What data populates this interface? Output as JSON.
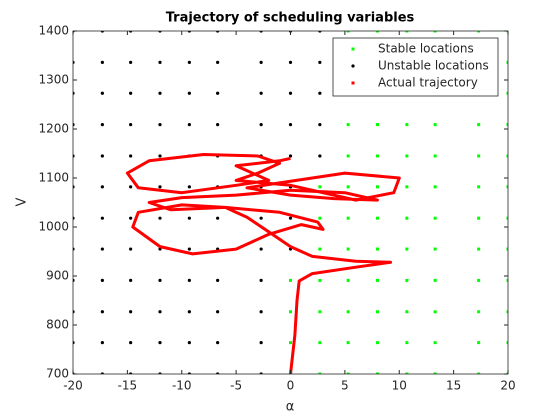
{
  "chart_data": {
    "type": "scatter",
    "title": "Trajectory of scheduling variables",
    "xlabel": "α",
    "ylabel": "V",
    "xlim": [
      -20,
      20
    ],
    "xticks": [
      -20,
      -15,
      -10,
      -5,
      0,
      5,
      10,
      15,
      20
    ],
    "ylim": [
      700,
      1400
    ],
    "yticks": [
      700,
      800,
      900,
      1000,
      1100,
      1200,
      1300,
      1400
    ],
    "grid": false,
    "legend": "northeast",
    "series": [
      {
        "name": "Stable locations",
        "color": "#00ff00",
        "marker": "square",
        "x": [
          0,
          2.7,
          5.3,
          8,
          10.7,
          13.3,
          17.3,
          20,
          0,
          2.7,
          5.3,
          8,
          10.7,
          13.3,
          17.3,
          20,
          0,
          2.7,
          5.3,
          8,
          10.7,
          13.3,
          17.3,
          20,
          0,
          2.7,
          5.3,
          8,
          10.7,
          13.3,
          17.3,
          20,
          2.7,
          5.3,
          8,
          10.7,
          13.3,
          17.3,
          20,
          2.7,
          5.3,
          8,
          10.7,
          13.3,
          17.3,
          20,
          2.7,
          5.3,
          8,
          10.7,
          13.3,
          17.3,
          20,
          5.3,
          8,
          10.7,
          13.3,
          17.3,
          20,
          5.3,
          8,
          10.7,
          13.3,
          17.3,
          20,
          5.3,
          8,
          10.7,
          13.3,
          17.3,
          20,
          5.3,
          8,
          10.7,
          13.3,
          17.3,
          20,
          5.3,
          8,
          10.7,
          13.3,
          17.3,
          20
        ],
        "y": [
          700,
          700,
          700,
          700,
          700,
          700,
          700,
          700,
          764,
          764,
          764,
          764,
          764,
          764,
          764,
          764,
          827,
          827,
          827,
          827,
          827,
          827,
          827,
          827,
          891,
          891,
          891,
          891,
          891,
          891,
          891,
          891,
          955,
          955,
          955,
          955,
          955,
          955,
          955,
          1018,
          1018,
          1018,
          1018,
          1018,
          1018,
          1018,
          1082,
          1082,
          1082,
          1082,
          1082,
          1082,
          1082,
          1145,
          1145,
          1145,
          1145,
          1145,
          1145,
          1209,
          1209,
          1209,
          1209,
          1209,
          1209,
          1273,
          1273,
          1273,
          1273,
          1273,
          1273,
          1336,
          1336,
          1336,
          1336,
          1336,
          1336,
          1400,
          1400,
          1400,
          1400,
          1400,
          1400
        ]
      },
      {
        "name": "Unstable locations",
        "color": "#000000",
        "marker": "dot",
        "x": [
          -20,
          -17.3,
          -14.7,
          -12,
          -9.3,
          -6.7,
          -2.7,
          -20,
          -17.3,
          -14.7,
          -12,
          -9.3,
          -6.7,
          -2.7,
          -20,
          -17.3,
          -14.7,
          -12,
          -9.3,
          -6.7,
          -2.7,
          -20,
          -17.3,
          -14.7,
          -12,
          -9.3,
          -6.7,
          -2.7,
          -20,
          -17.3,
          -14.7,
          -12,
          -9.3,
          -6.7,
          -2.7,
          0,
          -20,
          -17.3,
          -14.7,
          -12,
          -9.3,
          -6.7,
          -2.7,
          0,
          -20,
          -17.3,
          -14.7,
          -12,
          -9.3,
          -6.7,
          -2.7,
          0,
          -20,
          -17.3,
          -14.7,
          -12,
          -9.3,
          -6.7,
          -2.7,
          0,
          2.7,
          -20,
          -17.3,
          -14.7,
          -12,
          -9.3,
          -6.7,
          -2.7,
          0,
          2.7,
          -20,
          -17.3,
          -14.7,
          -12,
          -9.3,
          -6.7,
          -2.7,
          0,
          2.7,
          -20,
          -17.3,
          -14.7,
          -12,
          -9.3,
          -6.7,
          -2.7,
          0,
          2.7,
          -20,
          -17.3,
          -14.7,
          -12,
          -9.3,
          -6.7,
          -2.7,
          0,
          2.7
        ],
        "y": [
          700,
          700,
          700,
          700,
          700,
          700,
          700,
          764,
          764,
          764,
          764,
          764,
          764,
          764,
          827,
          827,
          827,
          827,
          827,
          827,
          827,
          891,
          891,
          891,
          891,
          891,
          891,
          891,
          955,
          955,
          955,
          955,
          955,
          955,
          955,
          955,
          1018,
          1018,
          1018,
          1018,
          1018,
          1018,
          1018,
          1018,
          1082,
          1082,
          1082,
          1082,
          1082,
          1082,
          1082,
          1082,
          1145,
          1145,
          1145,
          1145,
          1145,
          1145,
          1145,
          1145,
          1145,
          1209,
          1209,
          1209,
          1209,
          1209,
          1209,
          1209,
          1209,
          1209,
          1273,
          1273,
          1273,
          1273,
          1273,
          1273,
          1273,
          1273,
          1273,
          1336,
          1336,
          1336,
          1336,
          1336,
          1336,
          1336,
          1336,
          1336,
          1400,
          1400,
          1400,
          1400,
          1400,
          1400,
          1400,
          1400,
          1400
        ]
      },
      {
        "name": "Actual trajectory",
        "color": "#ff0000",
        "marker": "line",
        "x": [
          0,
          0.4,
          0.6,
          0.8,
          2,
          6,
          9.2,
          6,
          2,
          0,
          -2,
          -4,
          -6,
          -10,
          -14,
          -14.5,
          -12,
          -9,
          -5,
          -2,
          1,
          3,
          2.5,
          -1,
          -6,
          -11,
          -13,
          -10,
          -5,
          0,
          5,
          8,
          4,
          0,
          -4,
          -1,
          5,
          10,
          9.5,
          6,
          0,
          -5,
          -3,
          -1,
          -3,
          -8,
          -13,
          -15,
          -14,
          -10,
          -5,
          -2,
          -5,
          -1,
          0
        ],
        "y": [
          700,
          780,
          850,
          890,
          905,
          918,
          928,
          930,
          940,
          960,
          990,
          1020,
          1040,
          1045,
          1030,
          1000,
          960,
          945,
          955,
          985,
          1005,
          995,
          1010,
          1030,
          1040,
          1035,
          1050,
          1060,
          1065,
          1075,
          1070,
          1055,
          1058,
          1065,
          1080,
          1090,
          1110,
          1100,
          1070,
          1055,
          1085,
          1095,
          1110,
          1130,
          1145,
          1148,
          1135,
          1110,
          1080,
          1070,
          1085,
          1095,
          1125,
          1135,
          1140
        ]
      }
    ]
  }
}
